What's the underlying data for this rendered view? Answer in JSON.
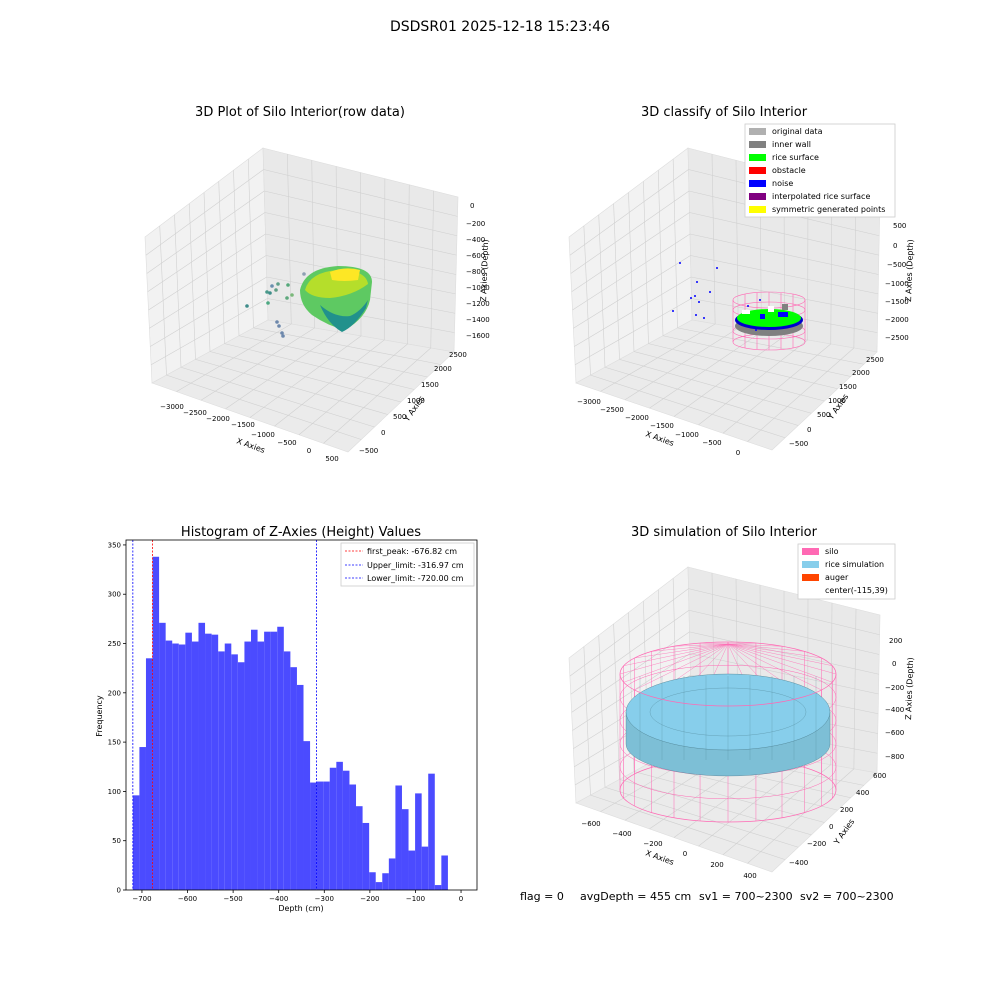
{
  "figure": {
    "suptitle": "DSDSR01 2025-12-18 15:23:46",
    "status": {
      "flag": "flag = 0",
      "avg_depth": "avgDepth = 455 cm",
      "sv1": "sv1 = 700~2300",
      "sv2": "sv2 = 700~2300"
    }
  },
  "colors": {
    "original_data": "#b0b0b0",
    "inner_wall": "#808080",
    "rice_surface": "#00ff00",
    "obstacle": "#ff0000",
    "noise": "#0000ff",
    "interpolated_rice_surface": "#800080",
    "symmetric_generated_points": "#ffff00",
    "silo": "#ff69b4",
    "rice_simulation": "#87ceeb",
    "auger": "#ff4500",
    "histogram": "#4b4bff"
  },
  "chart_data": [
    {
      "type": "scatter",
      "dimension": "3d",
      "title": "3D Plot of Silo Interior(row data)",
      "xlabel": "X Axies",
      "ylabel": "Y Axies",
      "zlabel": "Z Axies (Depth)",
      "xticks": [
        "−3000",
        "−2500",
        "−2000",
        "−1500",
        "−1000",
        "−500",
        "0",
        "500"
      ],
      "yticks": [
        "−500",
        "0",
        "500",
        "1000",
        "1500",
        "2000",
        "2500"
      ],
      "zticks": [
        "0",
        "−200",
        "−400",
        "−600",
        "−800",
        "−1000",
        "−1200",
        "−1400",
        "−1600"
      ],
      "xlim": [
        -3300,
        500
      ],
      "ylim": [
        -700,
        2500
      ],
      "zlim": [
        -1700,
        0
      ],
      "colormap": "viridis"
    },
    {
      "type": "scatter",
      "dimension": "3d",
      "title": "3D classify of Silo Interior",
      "xlabel": "X Axies",
      "ylabel": "Y Axies",
      "zlabel": "Z Axies (Depth)",
      "xticks": [
        "−3000",
        "−2500",
        "−2000",
        "−1500",
        "−1000",
        "−500",
        "0"
      ],
      "yticks": [
        "−500",
        "0",
        "500",
        "1000",
        "1500",
        "2000",
        "2500"
      ],
      "zticks": [
        "500",
        "0",
        "−500",
        "−1000",
        "−1500",
        "−2000",
        "−2500"
      ],
      "legend": [
        "original data",
        "inner wall",
        "rice surface",
        "obstacle",
        "noise",
        "interpolated rice surface",
        "symmetric generated points"
      ],
      "legend_loc": "upper right"
    },
    {
      "type": "bar",
      "title": "Histogram of Z-Axies (Height) Values",
      "xlabel": "Depth (cm)",
      "ylabel": "Frequency",
      "xlim": [
        -735,
        35
      ],
      "ylim": [
        0,
        355
      ],
      "xticks": [
        -700,
        -600,
        -500,
        -400,
        -300,
        -200,
        -100,
        0
      ],
      "xtick_labels": [
        "−700",
        "−600",
        "−500",
        "−400",
        "−300",
        "−200",
        "−100",
        "0"
      ],
      "yticks": [
        0,
        50,
        100,
        150,
        200,
        250,
        300,
        350
      ],
      "bin_start": -720,
      "bin_width": 14.4,
      "values": [
        96,
        145,
        235,
        338,
        271,
        253,
        250,
        249,
        261,
        252,
        271,
        260,
        259,
        242,
        250,
        239,
        231,
        252,
        264,
        252,
        262,
        262,
        267,
        242,
        226,
        208,
        151,
        109,
        110,
        110,
        124,
        130,
        121,
        107,
        85,
        68,
        18,
        8,
        17,
        32,
        106,
        82,
        40,
        98,
        44,
        118,
        5,
        35
      ],
      "vlines": [
        {
          "x": -676.82,
          "color": "#ff0000",
          "label": "first_peak: -676.82 cm"
        },
        {
          "x": -316.97,
          "color": "#0000ff",
          "label": "Upper_limit: -316.97 cm"
        },
        {
          "x": -720.0,
          "color": "#0000ff",
          "label": "Lower_limit: -720.00 cm"
        }
      ],
      "legend_loc": "upper right"
    },
    {
      "type": "surface",
      "dimension": "3d",
      "title": "3D simulation of Silo Interior",
      "xlabel": "X Axies",
      "ylabel": "Y Axies",
      "zlabel": "Z Axies (Depth)",
      "xticks": [
        "−600",
        "−400",
        "−200",
        "0",
        "200",
        "400"
      ],
      "yticks": [
        "600",
        "400",
        "200",
        "0",
        "−200",
        "−400"
      ],
      "zticks": [
        "200",
        "0",
        "−200",
        "−400",
        "−600",
        "−800"
      ],
      "legend": [
        "silo",
        "rice simulation",
        "auger",
        "center(-115,39)"
      ],
      "legend_loc": "upper right"
    }
  ]
}
